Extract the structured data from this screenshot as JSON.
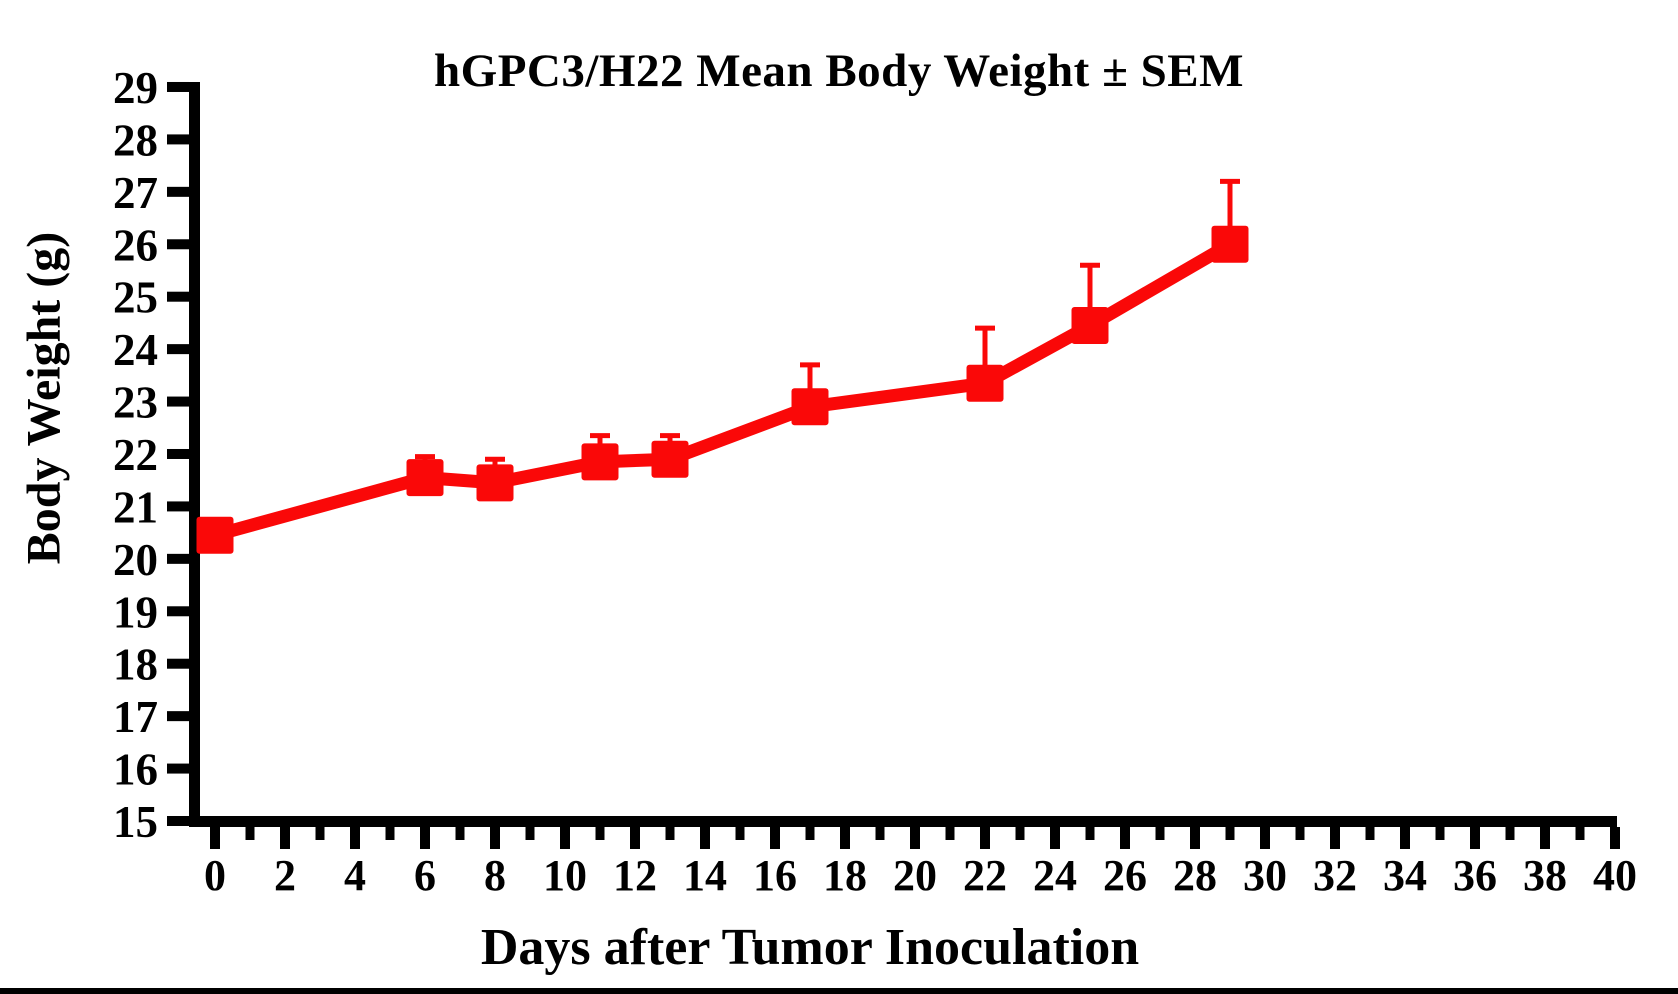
{
  "page": {
    "background": "#ffffff",
    "bottom_bar_color": "#000000"
  },
  "chart_data": {
    "type": "line",
    "title": "hGPC3/H22 Mean Body Weight ± SEM",
    "xlabel": "Days after Tumor Inoculation",
    "ylabel": "Body Weight (g)",
    "xlim": [
      0,
      40
    ],
    "ylim": [
      15,
      29
    ],
    "grid": "off",
    "legend": "none",
    "axis_color": "#000000",
    "x_ticks_labeled": [
      0,
      2,
      4,
      6,
      8,
      10,
      12,
      14,
      16,
      18,
      20,
      22,
      24,
      26,
      28,
      30,
      32,
      34,
      36,
      38,
      40
    ],
    "x_ticks_minor": [
      1,
      3,
      5,
      7,
      9,
      11,
      13,
      15,
      17,
      19,
      21,
      23,
      25,
      27,
      29,
      31,
      33,
      35,
      37,
      39
    ],
    "y_ticks": [
      15,
      16,
      17,
      18,
      19,
      20,
      21,
      22,
      23,
      24,
      25,
      26,
      27,
      28,
      29
    ],
    "series": [
      {
        "name": "hGPC3/H22 mean body weight",
        "color": "#fa0808",
        "marker": "square",
        "error_bars": "upper SEM only",
        "x": [
          0,
          6,
          8,
          11,
          13,
          17,
          22,
          25,
          29
        ],
        "y": [
          20.45,
          21.55,
          21.45,
          21.85,
          21.9,
          22.9,
          23.35,
          24.45,
          26.0
        ],
        "sem_upper": [
          0,
          0.4,
          0.45,
          0.5,
          0.45,
          0.8,
          1.05,
          1.15,
          1.2
        ]
      }
    ]
  }
}
